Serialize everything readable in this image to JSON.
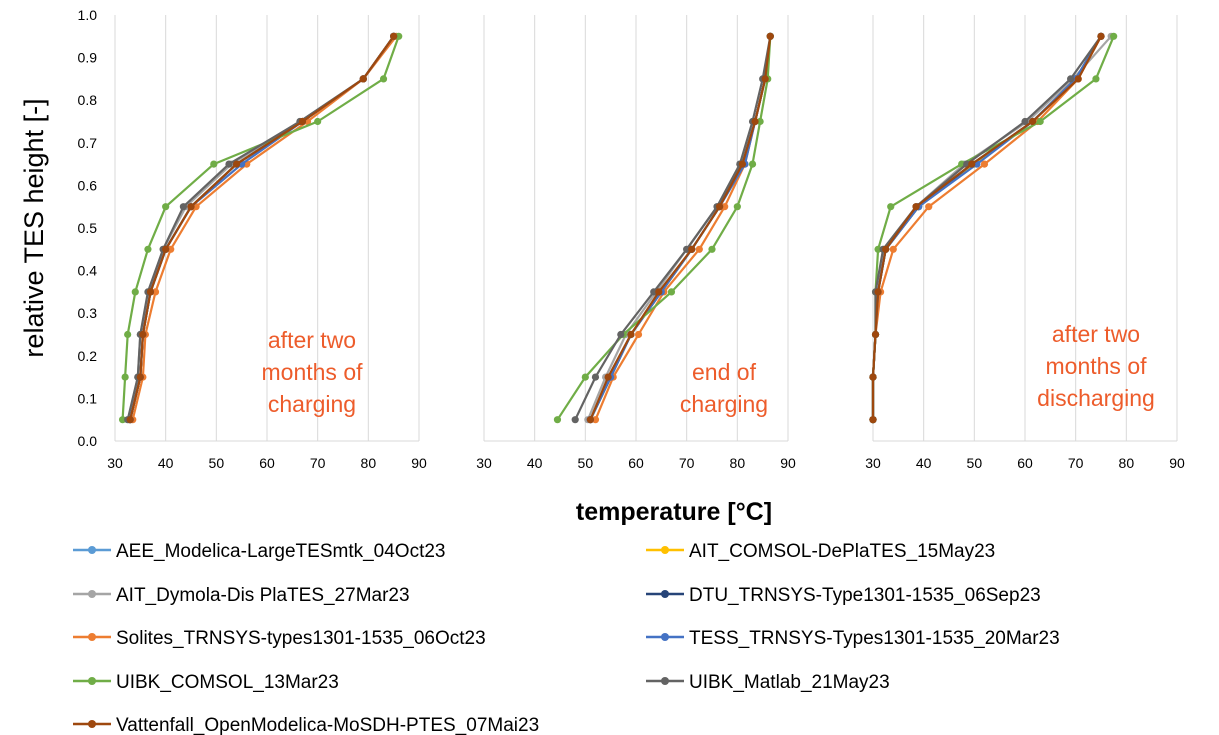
{
  "chart_data": {
    "type": "line",
    "ylabel": "relative TES height [-]",
    "xlabel": "temperature [°C]",
    "xlim": [
      30,
      90
    ],
    "ylim": [
      0.0,
      1.0
    ],
    "x_ticks": [
      "30",
      "40",
      "50",
      "60",
      "70",
      "80",
      "90"
    ],
    "y_ticks": [
      "0.0",
      "0.1",
      "0.2",
      "0.3",
      "0.4",
      "0.5",
      "0.6",
      "0.7",
      "0.8",
      "0.9",
      "1.0"
    ],
    "grid": "vertical",
    "legend_position": "bottom",
    "y": [
      0.05,
      0.15,
      0.25,
      0.35,
      0.45,
      0.55,
      0.65,
      0.75,
      0.85,
      0.95
    ],
    "series_meta": [
      {
        "name": "AEE_Modelica-LargeTESmtk_04Oct23",
        "color": "#5b9bd5"
      },
      {
        "name": "AIT_COMSOL-DePlaTES_15May23",
        "color": "#ffc000"
      },
      {
        "name": "AIT_Dymola-Dis PlaTES_27Mar23",
        "color": "#a5a5a5"
      },
      {
        "name": "DTU_TRNSYS-Type1301-1535_06Sep23",
        "color": "#264478"
      },
      {
        "name": "Solites_TRNSYS-types1301-1535_06Oct23",
        "color": "#ed7d31"
      },
      {
        "name": "TESS_TRNSYS-Types1301-1535_20Mar23",
        "color": "#4472c4"
      },
      {
        "name": "UIBK_COMSOL_13Mar23",
        "color": "#70ad47"
      },
      {
        "name": "UIBK_Matlab_21May23",
        "color": "#636363"
      },
      {
        "name": "Vattenfall_OpenModelica-MoSDH-PTES_07Mai23",
        "color": "#9e480e"
      }
    ],
    "panels": [
      {
        "annotation": [
          "after two",
          "months  of",
          "charging"
        ],
        "series": [
          {
            "name": "AEE_Modelica-LargeTESmtk_04Oct23",
            "x": [
              33,
              35,
              35.5,
              37,
              40,
              45,
              54,
              67,
              79,
              85
            ]
          },
          {
            "name": "AIT_COMSOL-DePlaTES_15May23",
            "x": [
              33,
              35,
              35.5,
              37,
              40,
              45,
              54,
              67,
              79,
              85
            ]
          },
          {
            "name": "AIT_Dymola-Dis PlaTES_27Mar23",
            "x": [
              32.8,
              34.5,
              35,
              36.8,
              39.5,
              44,
              53,
              66.5,
              79,
              85
            ]
          },
          {
            "name": "DTU_TRNSYS-Type1301-1535_06Sep23",
            "x": [
              33,
              35,
              35.5,
              37,
              40,
              45,
              54,
              67,
              79,
              85
            ]
          },
          {
            "name": "Solites_TRNSYS-types1301-1535_06Oct23",
            "x": [
              33.5,
              35.5,
              36,
              38,
              41,
              46,
              56,
              68,
              79,
              85.5
            ]
          },
          {
            "name": "TESS_TRNSYS-Types1301-1535_20Mar23",
            "x": [
              33,
              35,
              35.5,
              37,
              40,
              45,
              55,
              67,
              79,
              85
            ]
          },
          {
            "name": "UIBK_COMSOL_13Mar23",
            "x": [
              31.5,
              32,
              32.5,
              34,
              36.5,
              40,
              49.5,
              70,
              83,
              86
            ]
          },
          {
            "name": "UIBK_Matlab_21May23",
            "x": [
              32.5,
              34.5,
              35,
              36.5,
              39.5,
              43.5,
              52.5,
              66.5,
              79,
              85
            ]
          },
          {
            "name": "Vattenfall_OpenModelica-MoSDH-PTES_07Mai23",
            "x": [
              33,
              35,
              35.5,
              37,
              40,
              45,
              54,
              67,
              79,
              85
            ]
          }
        ]
      },
      {
        "annotation": [
          "end of",
          "charging"
        ],
        "series": [
          {
            "name": "AEE_Modelica-LargeTESmtk_04Oct23",
            "x": [
              51,
              55,
              59,
              65,
              71,
              76.5,
              81,
              83.5,
              85.5,
              86.5
            ]
          },
          {
            "name": "AIT_COMSOL-DePlaTES_15May23",
            "x": [
              51,
              55,
              59,
              65,
              71,
              76.5,
              81,
              83.5,
              85.5,
              86.5
            ]
          },
          {
            "name": "AIT_Dymola-Dis PlaTES_27Mar23",
            "x": [
              50.5,
              54,
              58,
              64,
              70,
              76,
              80.5,
              83.5,
              85.5,
              86.5
            ]
          },
          {
            "name": "DTU_TRNSYS-Type1301-1535_06Sep23",
            "x": [
              51,
              55,
              59,
              65,
              71,
              76.5,
              81,
              83.5,
              85.5,
              86.5
            ]
          },
          {
            "name": "Solites_TRNSYS-types1301-1535_06Oct23",
            "x": [
              52,
              55.5,
              60.5,
              65.5,
              72.5,
              77.5,
              81.5,
              83.5,
              85.5,
              86.5
            ]
          },
          {
            "name": "TESS_TRNSYS-Types1301-1535_20Mar23",
            "x": [
              51,
              55,
              59,
              65,
              71,
              76.5,
              81.5,
              83.5,
              85.5,
              86.5
            ]
          },
          {
            "name": "UIBK_COMSOL_13Mar23",
            "x": [
              44.5,
              50,
              57.5,
              67,
              75,
              80,
              83,
              84.5,
              86,
              86.5
            ]
          },
          {
            "name": "UIBK_Matlab_21May23",
            "x": [
              48,
              52,
              57,
              63.5,
              70,
              76,
              80.5,
              83,
              85,
              86.5
            ]
          },
          {
            "name": "Vattenfall_OpenModelica-MoSDH-PTES_07Mai23",
            "x": [
              51,
              54.5,
              59,
              64.5,
              71,
              76.5,
              81,
              83.5,
              85.5,
              86.5
            ]
          }
        ]
      },
      {
        "annotation": [
          "after two",
          "months  of",
          "discharging"
        ],
        "series": [
          {
            "name": "AEE_Modelica-LargeTESmtk_04Oct23",
            "x": [
              30,
              30,
              30.5,
              31,
              32.5,
              39,
              50,
              61.5,
              70,
              75
            ]
          },
          {
            "name": "AIT_COMSOL-DePlaTES_15May23",
            "x": [
              30,
              30,
              30.5,
              31,
              32.5,
              39,
              50,
              61.5,
              70,
              75
            ]
          },
          {
            "name": "AIT_Dymola-Dis PlaTES_27Mar23",
            "x": [
              30,
              30,
              30.5,
              31,
              32,
              38.5,
              48,
              60.5,
              69.5,
              77
            ]
          },
          {
            "name": "DTU_TRNSYS-Type1301-1535_06Sep23",
            "x": [
              30,
              30,
              30.5,
              31,
              32.5,
              39,
              49.5,
              61.5,
              70,
              75
            ]
          },
          {
            "name": "Solites_TRNSYS-types1301-1535_06Oct23",
            "x": [
              30,
              30,
              30.5,
              31.5,
              34,
              41,
              52,
              62.5,
              70.5,
              75
            ]
          },
          {
            "name": "TESS_TRNSYS-Types1301-1535_20Mar23",
            "x": [
              30,
              30,
              30.5,
              31,
              32.5,
              39,
              50.5,
              61.5,
              70,
              75
            ]
          },
          {
            "name": "UIBK_COMSOL_13Mar23",
            "x": [
              30,
              30,
              30.5,
              30.5,
              31,
              33.5,
              47.5,
              63,
              74,
              77.5
            ]
          },
          {
            "name": "UIBK_Matlab_21May23",
            "x": [
              30,
              30,
              30.5,
              30.5,
              32,
              38.5,
              48.5,
              60,
              69,
              75
            ]
          },
          {
            "name": "Vattenfall_OpenModelica-MoSDH-PTES_07Mai23",
            "x": [
              30,
              30,
              30.5,
              31,
              32.5,
              38.5,
              49.5,
              61.5,
              70.5,
              75
            ]
          }
        ]
      }
    ]
  }
}
